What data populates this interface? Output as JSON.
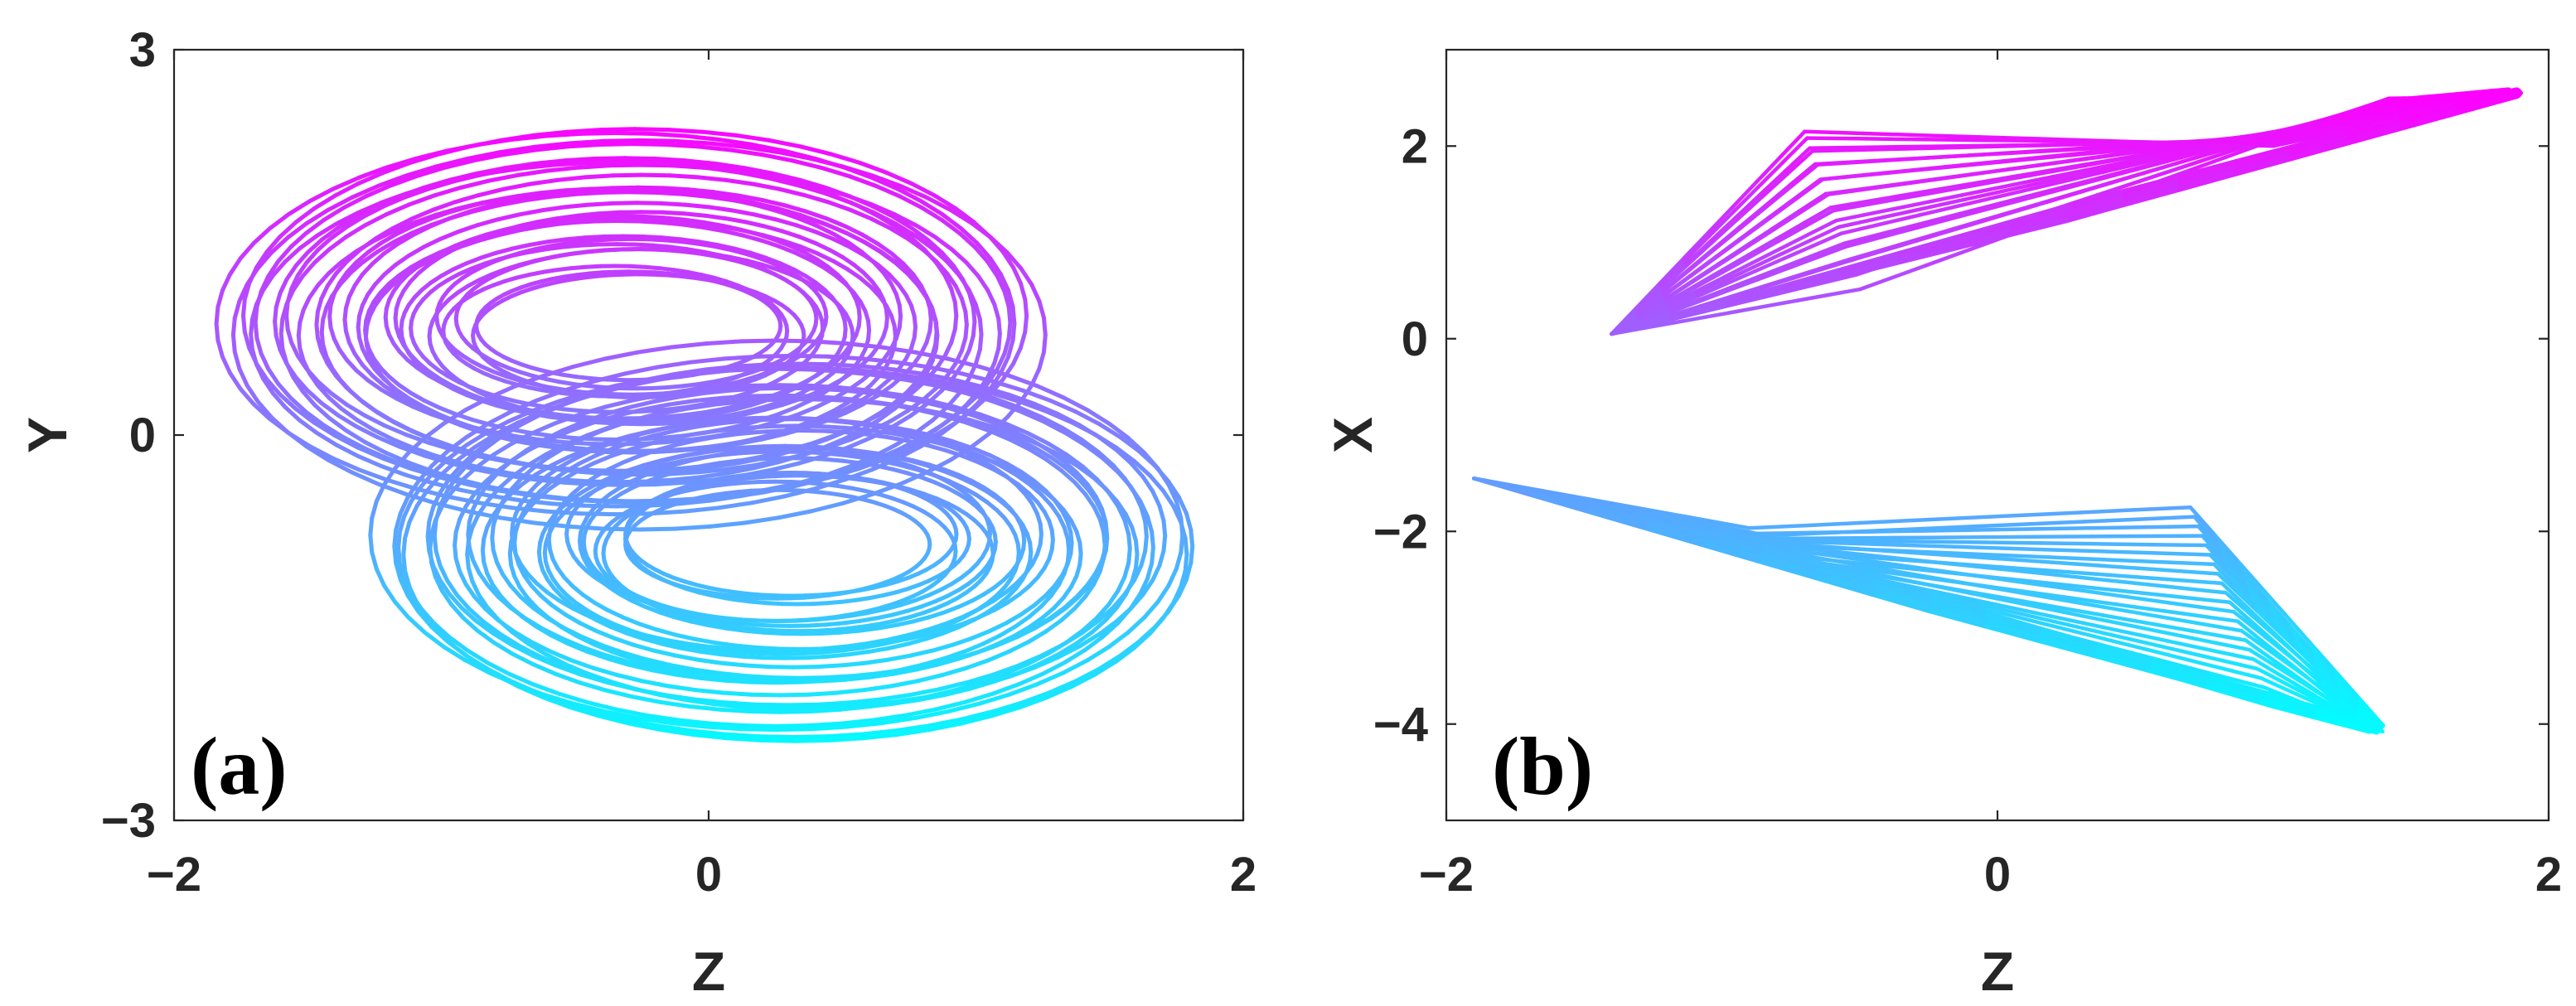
{
  "chart_data": [
    {
      "type": "line",
      "panel_label": "(a)",
      "xlabel": "Z",
      "ylabel": "Y",
      "xlim": [
        -2,
        2
      ],
      "ylim": [
        -3,
        3
      ],
      "xticks": [
        -2,
        0,
        2
      ],
      "yticks": [
        -3,
        0,
        3
      ],
      "xtick_labels": [
        "−2",
        "0",
        "2"
      ],
      "ytick_labels": [
        "−3",
        "0",
        "3"
      ],
      "grid": false,
      "colormap": [
        "#00ffff",
        "#ff00ff"
      ],
      "lobes": [
        {
          "cx": -0.3,
          "cy": 0.85,
          "rx_min": 0.55,
          "rx_max": 1.55,
          "ry_min": 0.4,
          "ry_max": 1.55
        },
        {
          "cx": 0.3,
          "cy": -0.85,
          "rx_min": 0.55,
          "rx_max": 1.55,
          "ry_min": 0.4,
          "ry_max": 1.55
        }
      ]
    },
    {
      "type": "line",
      "panel_label": "(b)",
      "xlabel": "Z",
      "ylabel": "X",
      "xlim": [
        -2,
        2
      ],
      "ylim": [
        -5,
        3
      ],
      "xticks": [
        -2,
        0,
        2
      ],
      "yticks": [
        -4,
        -2,
        0,
        2
      ],
      "xtick_labels": [
        "−2",
        "0",
        "2"
      ],
      "ytick_labels": [
        "−4",
        "−2",
        "0",
        "2"
      ],
      "grid": false,
      "colormap": [
        "#00ffff",
        "#ff00ff"
      ],
      "wedges": [
        {
          "tip": [
            -1.4,
            0.05
          ],
          "upper_start": [
            -0.7,
            2.15
          ],
          "upper_end": [
            1.0,
            2.0
          ],
          "far": [
            1.9,
            2.55
          ],
          "lower_start": [
            -0.5,
            0.55
          ]
        },
        {
          "tip": [
            -1.9,
            -1.45
          ],
          "upper_start": [
            -0.9,
            -2.0
          ],
          "upper_end": [
            0.7,
            -1.75
          ],
          "far": [
            1.4,
            -4.05
          ],
          "lower_start": [
            -0.6,
            -2.45
          ]
        }
      ]
    }
  ]
}
